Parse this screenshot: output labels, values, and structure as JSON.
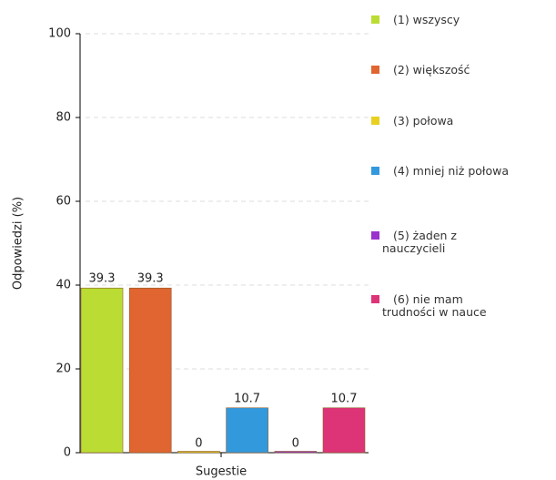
{
  "chart_data": {
    "type": "bar",
    "ylabel": "Odpowiedzi (%)",
    "xlabel": "Sugestie",
    "categories": [
      "Sugestie"
    ],
    "series": [
      {
        "name": "(1) wszyscy",
        "color": "#bbdd33",
        "values": [
          39.3
        ]
      },
      {
        "name": "(2) większość",
        "color": "#e06530",
        "values": [
          39.3
        ]
      },
      {
        "name": "(3) połowa",
        "color": "#e8d020",
        "values": [
          0
        ]
      },
      {
        "name": "(4) mniej niż połowa",
        "color": "#3399dd",
        "values": [
          10.7
        ]
      },
      {
        "name": "(5) żaden z nauczycieli",
        "color": "#9933cc",
        "values": [
          0
        ]
      },
      {
        "name": "(6) nie mam trudności w nauce",
        "color": "#dd3377",
        "values": [
          10.7
        ]
      }
    ],
    "ylim": [
      0,
      100
    ],
    "yticks": [
      0,
      20,
      40,
      60,
      80,
      100
    ],
    "grid": true,
    "legend": "right"
  }
}
